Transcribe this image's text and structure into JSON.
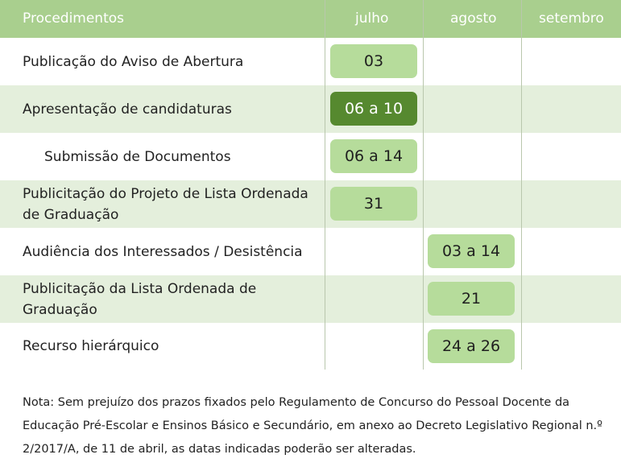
{
  "header": {
    "col_procedures": "Procedimentos",
    "col_july": "julho",
    "col_august": "agosto",
    "col_september": "setembro"
  },
  "rows": [
    {
      "label": "Publicação do Aviso de Abertura",
      "date": "03",
      "month": "julho"
    },
    {
      "label": "Apresentação de candidaturas",
      "date": "06 a 10",
      "month": "julho"
    },
    {
      "label": "Submissão de Documentos",
      "date": "06 a 14",
      "month": "julho"
    },
    {
      "label": "Publicitação do Projeto de Lista Ordenada de Graduação",
      "date": "31",
      "month": "julho"
    },
    {
      "label": "Audiência dos Interessados / Desistência",
      "date": "03 a 14",
      "month": "agosto"
    },
    {
      "label": "Publicitação da Lista Ordenada de Graduação",
      "date": "21",
      "month": "agosto"
    },
    {
      "label": "Recurso hierárquico",
      "date": "24 a 26",
      "month": "agosto"
    }
  ],
  "note": "Nota: Sem prejuízo dos prazos fixados pelo Regulamento de Concurso do Pessoal Docente da Educação Pré-Escolar e Ensinos Básico e Secundário, em anexo ao Decreto Legislativo Regional n.º 2/2017/A, de 11 de abril, as datas indicadas poderão ser alteradas.",
  "colors": {
    "header_bg": "#a9cf8e",
    "band_bg": "#e4efdc",
    "pill": "#b6dc9b",
    "pill_highlight": "#56892f"
  }
}
